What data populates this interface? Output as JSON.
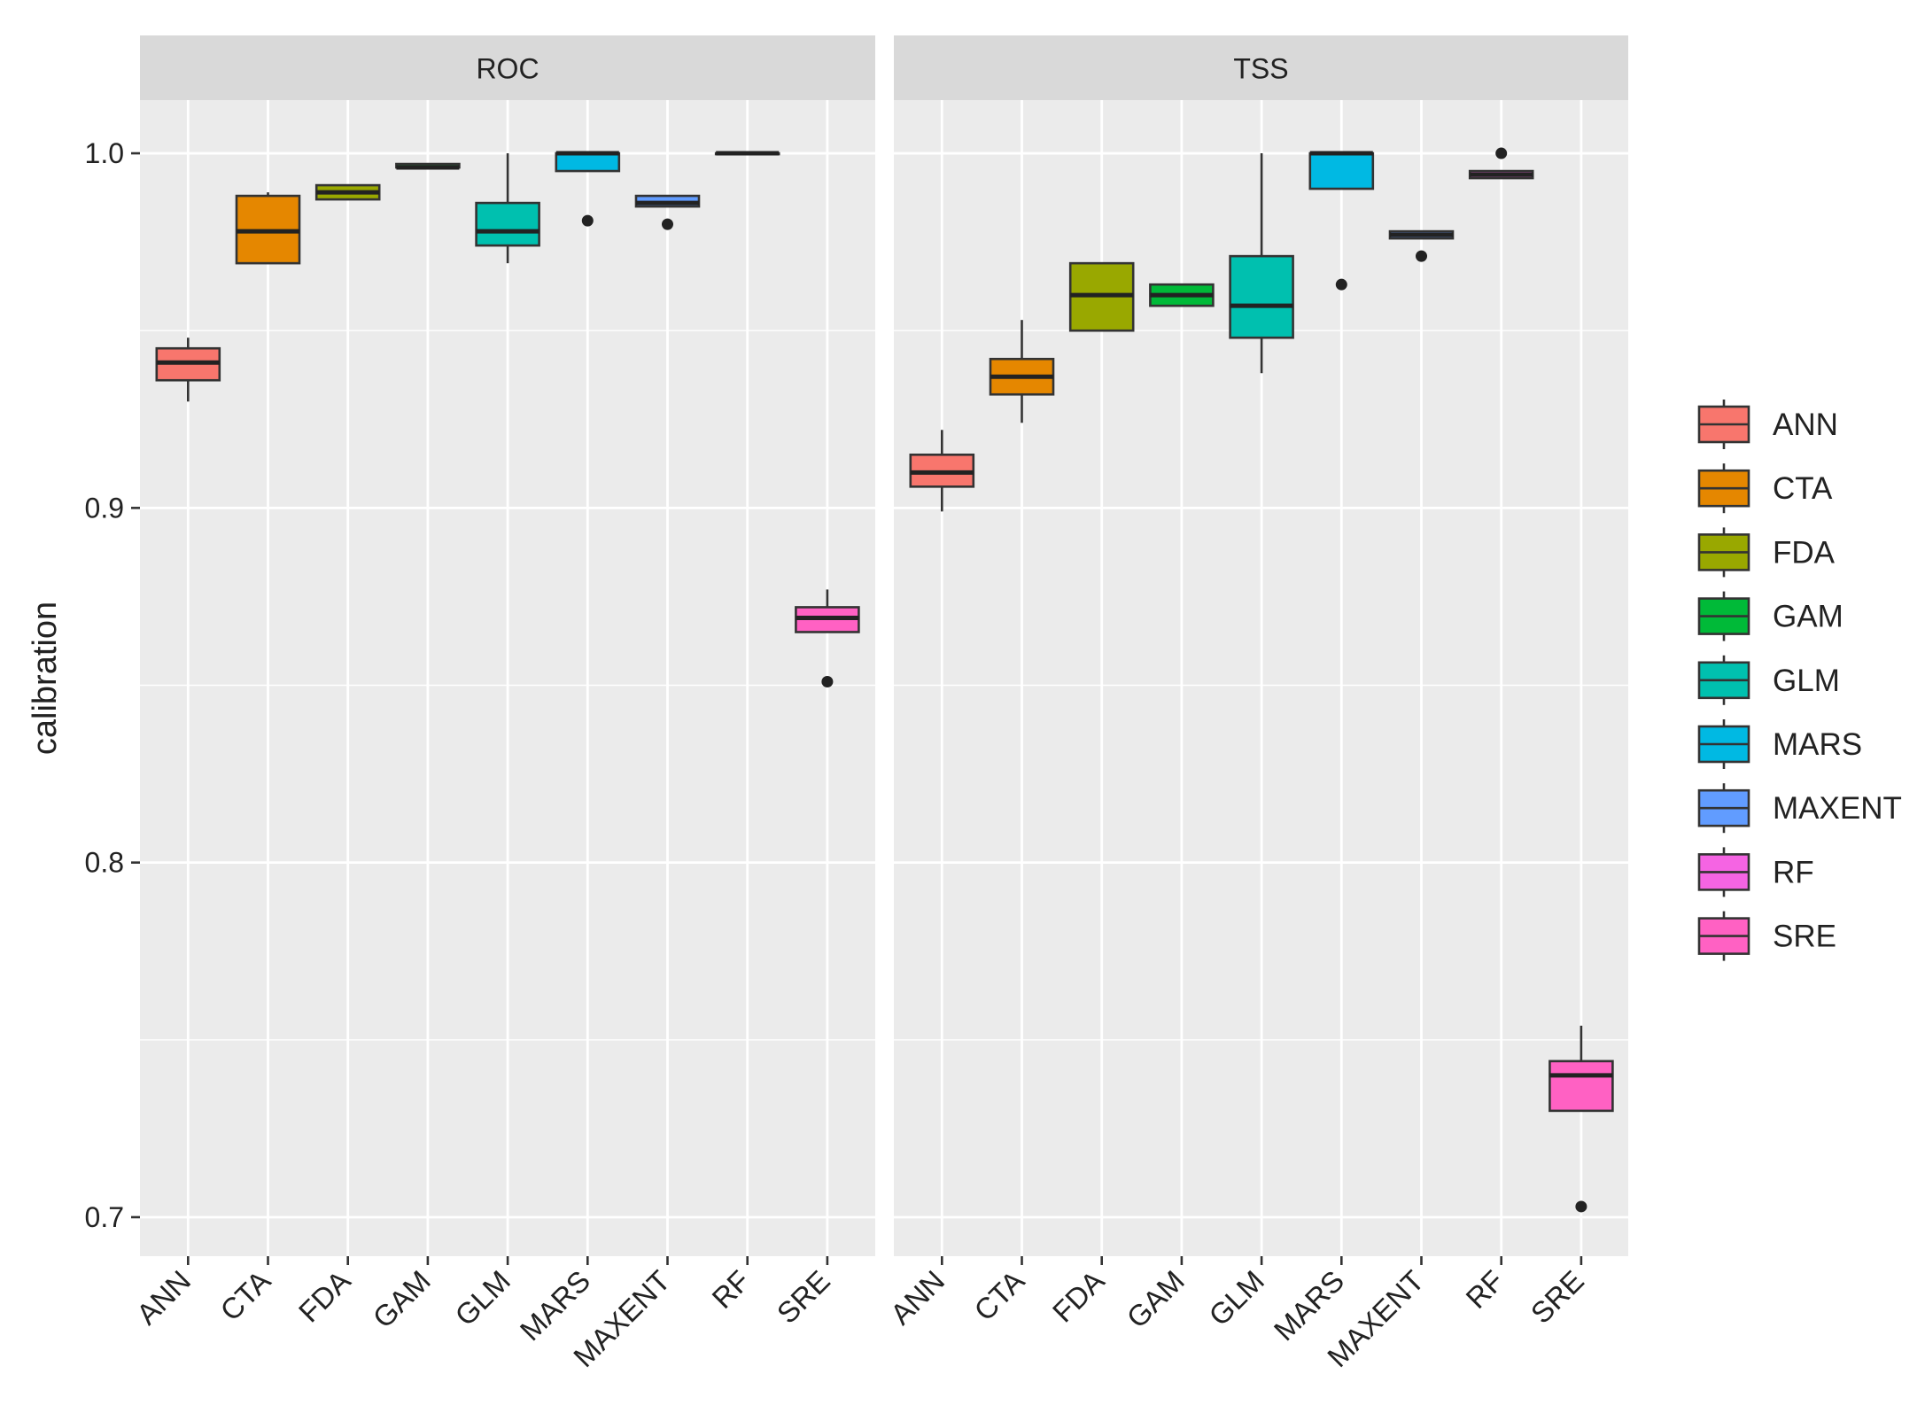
{
  "chart_data": {
    "type": "boxplot",
    "ylabel": "calibration",
    "xlabel": "",
    "ylim": [
      0.689,
      1.015
    ],
    "yticks": [
      0.7,
      0.8,
      0.9,
      1.0
    ],
    "yticklabels": [
      "0.7",
      "0.8",
      "0.9",
      "1.0"
    ],
    "categories": [
      "ANN",
      "CTA",
      "FDA",
      "GAM",
      "GLM",
      "MARS",
      "MAXENT",
      "RF",
      "SRE"
    ],
    "colors": {
      "ANN": "#F8766D",
      "CTA": "#E58700",
      "FDA": "#99A800",
      "GAM": "#00BA38",
      "GLM": "#00C0AF",
      "MARS": "#00B9E3",
      "MAXENT": "#619CFF",
      "RF": "#F564E3",
      "SRE": "#FF61C3"
    },
    "legend": {
      "position": "right",
      "entries": [
        "ANN",
        "CTA",
        "FDA",
        "GAM",
        "GLM",
        "MARS",
        "MAXENT",
        "RF",
        "SRE"
      ]
    },
    "panels": [
      {
        "strip": "ROC",
        "boxes": [
          {
            "model": "ANN",
            "whisker_low": 0.93,
            "q1": 0.936,
            "median": 0.941,
            "q3": 0.945,
            "whisker_high": 0.948,
            "outliers": []
          },
          {
            "model": "CTA",
            "whisker_low": 0.969,
            "q1": 0.969,
            "median": 0.978,
            "q3": 0.988,
            "whisker_high": 0.989,
            "outliers": []
          },
          {
            "model": "FDA",
            "whisker_low": 0.987,
            "q1": 0.987,
            "median": 0.989,
            "q3": 0.991,
            "whisker_high": 0.991,
            "outliers": []
          },
          {
            "model": "GAM",
            "whisker_low": 0.996,
            "q1": 0.996,
            "median": 0.996,
            "q3": 0.997,
            "whisker_high": 0.997,
            "outliers": []
          },
          {
            "model": "GLM",
            "whisker_low": 0.969,
            "q1": 0.974,
            "median": 0.978,
            "q3": 0.986,
            "whisker_high": 1.0,
            "outliers": []
          },
          {
            "model": "MARS",
            "whisker_low": 0.995,
            "q1": 0.995,
            "median": 1.0,
            "q3": 1.0,
            "whisker_high": 1.0,
            "outliers": [
              0.981
            ]
          },
          {
            "model": "MAXENT",
            "whisker_low": 0.985,
            "q1": 0.985,
            "median": 0.986,
            "q3": 0.988,
            "whisker_high": 0.988,
            "outliers": [
              0.98
            ]
          },
          {
            "model": "RF",
            "whisker_low": 1.0,
            "q1": 1.0,
            "median": 1.0,
            "q3": 1.0,
            "whisker_high": 1.0,
            "outliers": []
          },
          {
            "model": "SRE",
            "whisker_low": 0.865,
            "q1": 0.865,
            "median": 0.869,
            "q3": 0.872,
            "whisker_high": 0.877,
            "outliers": [
              0.851
            ]
          }
        ]
      },
      {
        "strip": "TSS",
        "boxes": [
          {
            "model": "ANN",
            "whisker_low": 0.899,
            "q1": 0.906,
            "median": 0.91,
            "q3": 0.915,
            "whisker_high": 0.922,
            "outliers": []
          },
          {
            "model": "CTA",
            "whisker_low": 0.924,
            "q1": 0.932,
            "median": 0.937,
            "q3": 0.942,
            "whisker_high": 0.953,
            "outliers": []
          },
          {
            "model": "FDA",
            "whisker_low": 0.95,
            "q1": 0.95,
            "median": 0.96,
            "q3": 0.969,
            "whisker_high": 0.969,
            "outliers": []
          },
          {
            "model": "GAM",
            "whisker_low": 0.957,
            "q1": 0.957,
            "median": 0.96,
            "q3": 0.963,
            "whisker_high": 0.963,
            "outliers": []
          },
          {
            "model": "GLM",
            "whisker_low": 0.938,
            "q1": 0.948,
            "median": 0.957,
            "q3": 0.971,
            "whisker_high": 1.0,
            "outliers": []
          },
          {
            "model": "MARS",
            "whisker_low": 0.99,
            "q1": 0.99,
            "median": 1.0,
            "q3": 1.0,
            "whisker_high": 1.0,
            "outliers": [
              0.963
            ]
          },
          {
            "model": "MAXENT",
            "whisker_low": 0.976,
            "q1": 0.976,
            "median": 0.977,
            "q3": 0.978,
            "whisker_high": 0.978,
            "outliers": [
              0.971
            ]
          },
          {
            "model": "RF",
            "whisker_low": 0.993,
            "q1": 0.993,
            "median": 0.994,
            "q3": 0.995,
            "whisker_high": 0.995,
            "outliers": [
              1.0
            ]
          },
          {
            "model": "SRE",
            "whisker_low": 0.73,
            "q1": 0.73,
            "median": 0.74,
            "q3": 0.744,
            "whisker_high": 0.754,
            "outliers": [
              0.703
            ]
          }
        ]
      }
    ]
  }
}
